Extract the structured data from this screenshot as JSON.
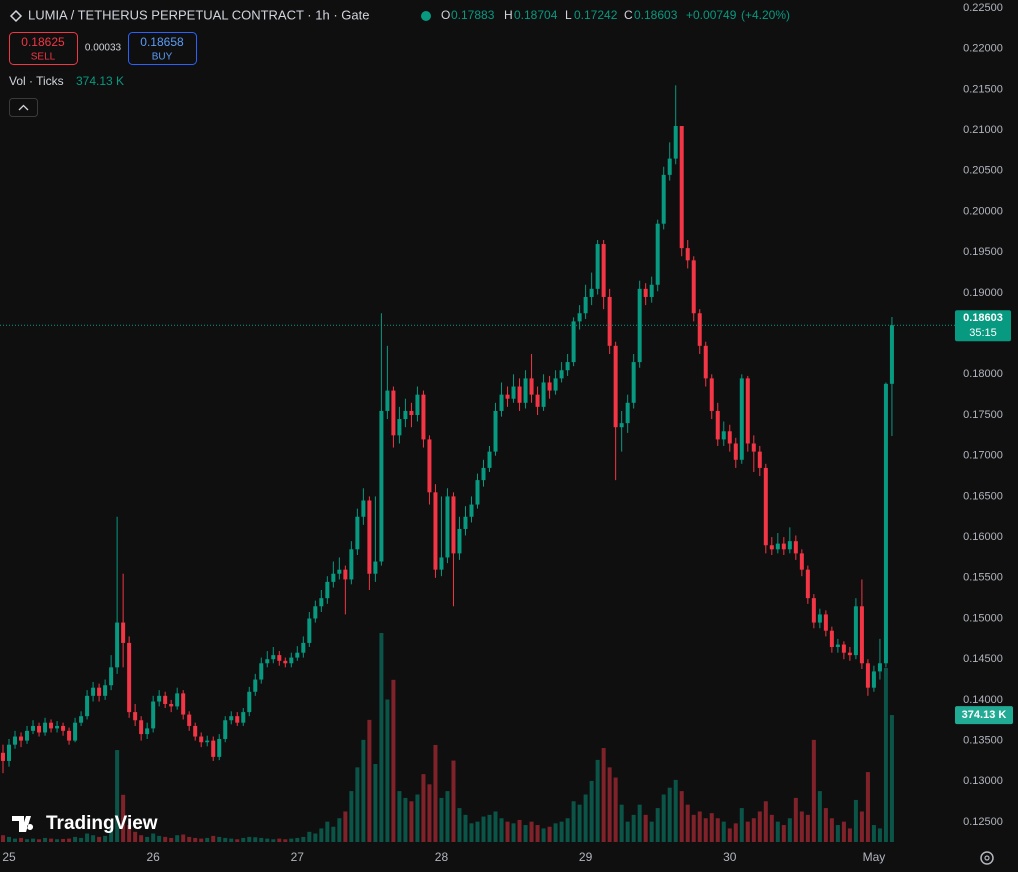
{
  "chart_data": {
    "type": "candlestick",
    "title": "LUMIA / TETHERUS PERPETUAL CONTRACT · 1h · Gate",
    "ohlc_labels": [
      "O",
      "H",
      "L",
      "C"
    ],
    "change": "+0.00749",
    "change_percent": "(+4.20%)",
    "sell_price": 0.18625,
    "sell_label": "SELL",
    "spread": 0.00033,
    "buy_price": 0.18658,
    "buy_label": "BUY",
    "volume_title": "Vol · Ticks",
    "last_volume_label": "374.13 K",
    "countdown": "35:15",
    "watermark": "TradingView",
    "colors": {
      "up": "#089981",
      "down": "#f23645"
    },
    "grid": false,
    "xlim": [
      -1.5,
      157.5
    ],
    "xticks": [
      {
        "value": 0,
        "label": "25"
      },
      {
        "value": 24,
        "label": "26"
      },
      {
        "value": 48,
        "label": "27"
      },
      {
        "value": 72,
        "label": "28"
      },
      {
        "value": 96,
        "label": "29"
      },
      {
        "value": 120,
        "label": "30"
      },
      {
        "value": 144,
        "label": "May"
      }
    ],
    "ylim": [
      0.125,
      0.225
    ],
    "yticks": [
      {
        "value": 0.125,
        "label": "0.12500"
      },
      {
        "value": 0.13,
        "label": "0.13000"
      },
      {
        "value": 0.135,
        "label": "0.13500"
      },
      {
        "value": 0.14,
        "label": "0.14000"
      },
      {
        "value": 0.145,
        "label": "0.14500"
      },
      {
        "value": 0.15,
        "label": "0.15000"
      },
      {
        "value": 0.155,
        "label": "0.15500"
      },
      {
        "value": 0.16,
        "label": "0.16000"
      },
      {
        "value": 0.165,
        "label": "0.16500"
      },
      {
        "value": 0.17,
        "label": "0.17000"
      },
      {
        "value": 0.175,
        "label": "0.17500"
      },
      {
        "value": 0.18,
        "label": "0.18000"
      },
      {
        "value": 0.185,
        "label": "0.18500"
      },
      {
        "value": 0.19,
        "label": "0.19000"
      },
      {
        "value": 0.195,
        "label": "0.19500"
      },
      {
        "value": 0.2,
        "label": "0.20000"
      },
      {
        "value": 0.205,
        "label": "0.20500"
      },
      {
        "value": 0.21,
        "label": "0.21000"
      },
      {
        "value": 0.215,
        "label": "0.21500"
      },
      {
        "value": 0.22,
        "label": "0.22000"
      },
      {
        "value": 0.225,
        "label": "0.22500"
      }
    ],
    "x": [
      -1,
      0,
      1,
      2,
      3,
      4,
      5,
      6,
      7,
      8,
      9,
      10,
      11,
      12,
      13,
      14,
      15,
      16,
      17,
      18,
      19,
      20,
      21,
      22,
      23,
      24,
      25,
      26,
      27,
      28,
      29,
      30,
      31,
      32,
      33,
      34,
      35,
      36,
      37,
      38,
      39,
      40,
      41,
      42,
      43,
      44,
      45,
      46,
      47,
      48,
      49,
      50,
      51,
      52,
      53,
      54,
      55,
      56,
      57,
      58,
      59,
      60,
      61,
      62,
      63,
      64,
      65,
      66,
      67,
      68,
      69,
      70,
      71,
      72,
      73,
      74,
      75,
      76,
      77,
      78,
      79,
      80,
      81,
      82,
      83,
      84,
      85,
      86,
      87,
      88,
      89,
      90,
      91,
      92,
      93,
      94,
      95,
      96,
      97,
      98,
      99,
      100,
      101,
      102,
      103,
      104,
      105,
      106,
      107,
      108,
      109,
      110,
      111,
      112,
      113,
      114,
      115,
      116,
      117,
      118,
      119,
      120,
      121,
      122,
      123,
      124,
      125,
      126,
      127,
      128,
      129,
      130,
      131,
      132,
      133,
      134,
      135,
      136,
      137,
      138,
      139,
      140,
      141,
      142,
      143,
      144,
      145,
      146,
      147
    ],
    "open": [
      0.1335,
      0.1325,
      0.1345,
      0.1355,
      0.135,
      0.1362,
      0.1368,
      0.136,
      0.1372,
      0.1365,
      0.1368,
      0.1362,
      0.135,
      0.1372,
      0.138,
      0.1405,
      0.1415,
      0.1405,
      0.1418,
      0.144,
      0.1495,
      0.147,
      0.1385,
      0.1375,
      0.1358,
      0.1365,
      0.1398,
      0.1405,
      0.1395,
      0.1392,
      0.1408,
      0.1382,
      0.1368,
      0.1355,
      0.1348,
      0.135,
      0.133,
      0.1352,
      0.1375,
      0.138,
      0.1372,
      0.1385,
      0.141,
      0.1425,
      0.1445,
      0.145,
      0.1455,
      0.1448,
      0.1445,
      0.1452,
      0.1458,
      0.147,
      0.15,
      0.1515,
      0.1525,
      0.1545,
      0.1555,
      0.156,
      0.1548,
      0.1585,
      0.1625,
      0.1645,
      0.1555,
      0.157,
      0.1755,
      0.178,
      0.1725,
      0.1745,
      0.1755,
      0.175,
      0.1775,
      0.172,
      0.1655,
      0.156,
      0.1575,
      0.165,
      0.158,
      0.161,
      0.1625,
      0.164,
      0.167,
      0.1685,
      0.1705,
      0.1755,
      0.1775,
      0.177,
      0.1785,
      0.1765,
      0.1795,
      0.1775,
      0.176,
      0.179,
      0.178,
      0.1795,
      0.1805,
      0.1815,
      0.1865,
      0.1875,
      0.1895,
      0.1905,
      0.196,
      0.1895,
      0.1835,
      0.1735,
      0.174,
      0.1765,
      0.1815,
      0.1905,
      0.1895,
      0.191,
      0.1985,
      0.2045,
      0.2065,
      0.2105,
      0.1955,
      0.194,
      0.1875,
      0.1835,
      0.1795,
      0.1755,
      0.172,
      0.173,
      0.1715,
      0.1695,
      0.1795,
      0.1715,
      0.1705,
      0.1685,
      0.159,
      0.1585,
      0.1592,
      0.1585,
      0.1595,
      0.158,
      0.156,
      0.1525,
      0.1495,
      0.1505,
      0.1485,
      0.1465,
      0.1468,
      0.1458,
      0.1455,
      0.1515,
      0.1445,
      0.1415,
      0.1435,
      0.1445,
      0.17883
    ],
    "high": [
      0.1345,
      0.1352,
      0.1362,
      0.136,
      0.1368,
      0.1375,
      0.1372,
      0.1378,
      0.1376,
      0.1374,
      0.1372,
      0.1366,
      0.1378,
      0.1386,
      0.1412,
      0.1422,
      0.142,
      0.1425,
      0.1455,
      0.1625,
      0.1555,
      0.1478,
      0.1395,
      0.138,
      0.1372,
      0.1405,
      0.1412,
      0.141,
      0.14,
      0.1415,
      0.1412,
      0.1386,
      0.1372,
      0.136,
      0.1356,
      0.1355,
      0.1358,
      0.138,
      0.1386,
      0.1385,
      0.139,
      0.1416,
      0.1432,
      0.1452,
      0.146,
      0.1465,
      0.146,
      0.1452,
      0.1458,
      0.1466,
      0.1478,
      0.1508,
      0.1522,
      0.1535,
      0.1552,
      0.157,
      0.1575,
      0.1565,
      0.1595,
      0.1635,
      0.166,
      0.165,
      0.165,
      0.1875,
      0.1835,
      0.1785,
      0.176,
      0.177,
      0.1765,
      0.1785,
      0.178,
      0.1725,
      0.1665,
      0.165,
      0.166,
      0.1655,
      0.1625,
      0.1638,
      0.165,
      0.1678,
      0.1695,
      0.1712,
      0.1765,
      0.179,
      0.1785,
      0.18,
      0.1795,
      0.1805,
      0.1825,
      0.1785,
      0.18,
      0.1798,
      0.1805,
      0.1815,
      0.1825,
      0.187,
      0.1885,
      0.191,
      0.1925,
      0.1965,
      0.1965,
      0.1905,
      0.184,
      0.1755,
      0.1775,
      0.1825,
      0.1915,
      0.1912,
      0.192,
      0.199,
      0.2055,
      0.2085,
      0.2155,
      0.2105,
      0.1965,
      0.1945,
      0.188,
      0.184,
      0.18,
      0.1765,
      0.1742,
      0.1738,
      0.1722,
      0.18,
      0.1798,
      0.1725,
      0.1712,
      0.169,
      0.16,
      0.1605,
      0.16,
      0.1612,
      0.1602,
      0.1585,
      0.1565,
      0.153,
      0.1512,
      0.151,
      0.149,
      0.1475,
      0.1472,
      0.1465,
      0.1525,
      0.1548,
      0.145,
      0.1442,
      0.1475,
      0.179,
      0.18704
    ],
    "low": [
      0.131,
      0.1318,
      0.134,
      0.1342,
      0.1346,
      0.1358,
      0.1355,
      0.1356,
      0.136,
      0.136,
      0.1356,
      0.1345,
      0.1348,
      0.1368,
      0.1376,
      0.1398,
      0.1398,
      0.14,
      0.1412,
      0.1432,
      0.144,
      0.1378,
      0.1368,
      0.135,
      0.1352,
      0.136,
      0.1392,
      0.139,
      0.1385,
      0.1388,
      0.1376,
      0.1362,
      0.135,
      0.1342,
      0.1343,
      0.1325,
      0.1326,
      0.1348,
      0.137,
      0.1368,
      0.1368,
      0.138,
      0.1405,
      0.142,
      0.144,
      0.1445,
      0.1442,
      0.144,
      0.144,
      0.1448,
      0.1452,
      0.1465,
      0.1495,
      0.1508,
      0.1518,
      0.1538,
      0.1548,
      0.1505,
      0.1542,
      0.1578,
      0.1615,
      0.1535,
      0.1545,
      0.1565,
      0.1745,
      0.171,
      0.1715,
      0.1735,
      0.1735,
      0.1742,
      0.171,
      0.164,
      0.155,
      0.1552,
      0.1568,
      0.1515,
      0.1572,
      0.1602,
      0.1618,
      0.1635,
      0.1662,
      0.168,
      0.17,
      0.1748,
      0.176,
      0.1765,
      0.1755,
      0.1758,
      0.1765,
      0.175,
      0.1755,
      0.177,
      0.1775,
      0.179,
      0.1798,
      0.181,
      0.1855,
      0.1868,
      0.1885,
      0.1898,
      0.188,
      0.1825,
      0.167,
      0.1705,
      0.1728,
      0.1758,
      0.1808,
      0.1885,
      0.1888,
      0.1902,
      0.1978,
      0.2038,
      0.2058,
      0.1945,
      0.193,
      0.1865,
      0.1825,
      0.1785,
      0.1745,
      0.1712,
      0.1712,
      0.1705,
      0.1685,
      0.169,
      0.1705,
      0.168,
      0.1675,
      0.158,
      0.1578,
      0.158,
      0.1578,
      0.158,
      0.1572,
      0.1552,
      0.1518,
      0.1488,
      0.1488,
      0.1478,
      0.1458,
      0.1458,
      0.145,
      0.1448,
      0.145,
      0.1438,
      0.1405,
      0.141,
      0.1425,
      0.144,
      0.17242
    ],
    "close": [
      0.1325,
      0.1345,
      0.1355,
      0.135,
      0.1362,
      0.1368,
      0.136,
      0.1372,
      0.1365,
      0.1368,
      0.1362,
      0.135,
      0.1372,
      0.138,
      0.1405,
      0.1415,
      0.1405,
      0.1418,
      0.144,
      0.1495,
      0.147,
      0.1385,
      0.1375,
      0.1358,
      0.1365,
      0.1398,
      0.1405,
      0.1395,
      0.1392,
      0.1408,
      0.1382,
      0.1368,
      0.1355,
      0.1348,
      0.135,
      0.133,
      0.1352,
      0.1375,
      0.138,
      0.1372,
      0.1385,
      0.141,
      0.1425,
      0.1445,
      0.145,
      0.1455,
      0.1448,
      0.1445,
      0.1452,
      0.1458,
      0.147,
      0.15,
      0.1515,
      0.1525,
      0.1545,
      0.1555,
      0.156,
      0.1548,
      0.1585,
      0.1625,
      0.1645,
      0.1555,
      0.157,
      0.1755,
      0.178,
      0.1725,
      0.1745,
      0.1755,
      0.175,
      0.1775,
      0.172,
      0.1655,
      0.156,
      0.1575,
      0.165,
      0.158,
      0.161,
      0.1625,
      0.164,
      0.167,
      0.1685,
      0.1705,
      0.1755,
      0.1775,
      0.177,
      0.1785,
      0.1765,
      0.1795,
      0.1775,
      0.176,
      0.179,
      0.178,
      0.1795,
      0.1805,
      0.1815,
      0.1865,
      0.1875,
      0.1895,
      0.1905,
      0.196,
      0.1895,
      0.1835,
      0.1735,
      0.174,
      0.1765,
      0.1815,
      0.1905,
      0.1895,
      0.191,
      0.1985,
      0.2045,
      0.2065,
      0.2105,
      0.1955,
      0.194,
      0.1875,
      0.1835,
      0.1795,
      0.1755,
      0.172,
      0.173,
      0.1715,
      0.1695,
      0.1795,
      0.1715,
      0.1705,
      0.1685,
      0.159,
      0.1585,
      0.1592,
      0.1585,
      0.1595,
      0.158,
      0.156,
      0.1525,
      0.1495,
      0.1505,
      0.1485,
      0.1465,
      0.1468,
      0.1458,
      0.1455,
      0.1515,
      0.1445,
      0.1415,
      0.1435,
      0.1445,
      0.17883,
      0.18603
    ],
    "volume": [
      20,
      15,
      10,
      12,
      8,
      10,
      8,
      12,
      10,
      8,
      9,
      10,
      15,
      12,
      25,
      20,
      15,
      18,
      40,
      271,
      139,
      50,
      30,
      20,
      15,
      25,
      18,
      15,
      12,
      20,
      22,
      15,
      12,
      10,
      12,
      18,
      15,
      12,
      10,
      8,
      12,
      15,
      14,
      12,
      10,
      8,
      10,
      8,
      10,
      12,
      15,
      30,
      25,
      40,
      60,
      45,
      70,
      90,
      150,
      220,
      301,
      360,
      230,
      616,
      420,
      478,
      150,
      130,
      120,
      140,
      200,
      170,
      286,
      130,
      150,
      240,
      100,
      80,
      55,
      60,
      75,
      80,
      90,
      70,
      60,
      55,
      65,
      50,
      60,
      50,
      40,
      45,
      55,
      60,
      70,
      120,
      110,
      140,
      180,
      242,
      277,
      220,
      190,
      110,
      60,
      80,
      110,
      80,
      60,
      100,
      140,
      160,
      183,
      150,
      110,
      80,
      90,
      70,
      85,
      70,
      60,
      40,
      55,
      100,
      60,
      70,
      90,
      120,
      80,
      60,
      50,
      70,
      130,
      90,
      80,
      301,
      150,
      100,
      70,
      50,
      60,
      40,
      124,
      90,
      206,
      50,
      40,
      513,
      374.13
    ]
  }
}
